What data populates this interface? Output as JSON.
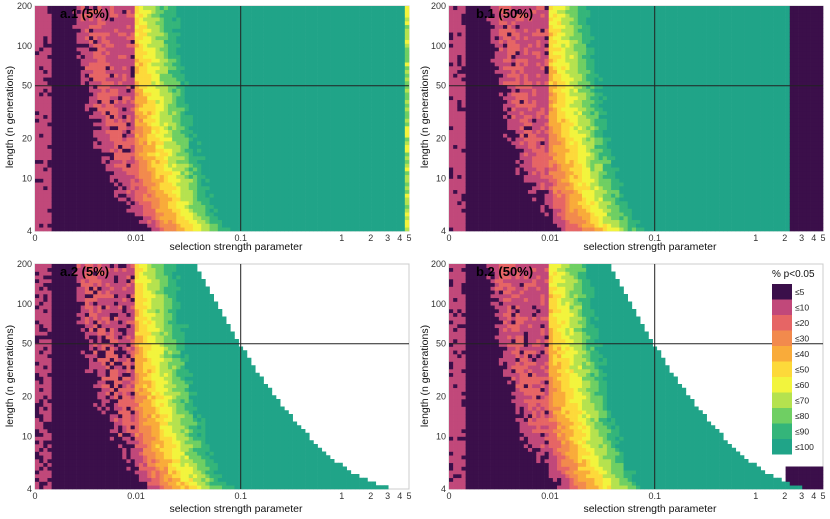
{
  "figure": {
    "legend_title": "% p<0.05",
    "colorscale": [
      {
        "label": "≤5",
        "color": "#3b0f4a"
      },
      {
        "label": "≤10",
        "color": "#c1487a"
      },
      {
        "label": "≤20",
        "color": "#e66565"
      },
      {
        "label": "≤30",
        "color": "#f28a4d"
      },
      {
        "label": "≤40",
        "color": "#f9ab3a"
      },
      {
        "label": "≤50",
        "color": "#fdd93a"
      },
      {
        "label": "≤60",
        "color": "#f2f43d"
      },
      {
        "label": "≤70",
        "color": "#b5e24f"
      },
      {
        "label": "≤80",
        "color": "#6fcf63"
      },
      {
        "label": "≤90",
        "color": "#34b57a"
      },
      {
        "label": "≤100",
        "color": "#20a488"
      }
    ]
  },
  "chart_data": [
    {
      "type": "heatmap",
      "panel": "a.1 (5%)",
      "xlabel": "selection strength parameter",
      "ylabel": "length (n generations)",
      "x_ticks": [
        "0",
        "0.01",
        "0.1",
        "1",
        "2",
        "3",
        "4",
        "5"
      ],
      "y_ticks": [
        "4",
        "10",
        "20",
        "50",
        "100",
        "200"
      ],
      "xlim": [
        0,
        5
      ],
      "ylim": [
        4,
        200
      ],
      "power_curve": {
        "s_at_90pct_len200": 0.025,
        "s_at_90pct_len10": 0.1,
        "upper_cutoff": "none"
      }
    },
    {
      "type": "heatmap",
      "panel": "b.1 (50%)",
      "xlabel": "selection strength parameter",
      "ylabel": "length (n generations)",
      "x_ticks": [
        "0",
        "0.01",
        "0.1",
        "1",
        "2",
        "3",
        "4",
        "5"
      ],
      "y_ticks": [
        "4",
        "10",
        "20",
        "50",
        "100",
        "200"
      ],
      "xlim": [
        0,
        5
      ],
      "ylim": [
        4,
        200
      ],
      "power_curve": {
        "s_at_90pct_len200": 0.025,
        "s_at_90pct_len10": 0.1,
        "upper_cutoff": 2.3
      }
    },
    {
      "type": "heatmap",
      "panel": "a.2 (5%)",
      "xlabel": "selection strength parameter",
      "ylabel": "length (n generations)",
      "x_ticks": [
        "0",
        "0.01",
        "0.1",
        "1",
        "2",
        "3",
        "4",
        "5"
      ],
      "y_ticks": [
        "4",
        "10",
        "20",
        "50",
        "100",
        "200"
      ],
      "xlim": [
        0,
        5
      ],
      "ylim": [
        4,
        200
      ],
      "power_curve": {
        "s_at_90pct_len200": 0.025,
        "s_at_90pct_len10": 0.1,
        "upper_cutoff": "decreasing with length"
      }
    },
    {
      "type": "heatmap",
      "panel": "b.2 (50%)",
      "xlabel": "selection strength parameter",
      "ylabel": "length (n generations)",
      "x_ticks": [
        "0",
        "0.01",
        "0.1",
        "1",
        "2",
        "3",
        "4",
        "5"
      ],
      "y_ticks": [
        "4",
        "10",
        "20",
        "50",
        "100",
        "200"
      ],
      "xlim": [
        0,
        5
      ],
      "ylim": [
        4,
        200
      ],
      "power_curve": {
        "s_at_90pct_len200": 0.025,
        "s_at_90pct_len10": 0.1,
        "upper_cutoff": "decreasing with length"
      }
    }
  ]
}
